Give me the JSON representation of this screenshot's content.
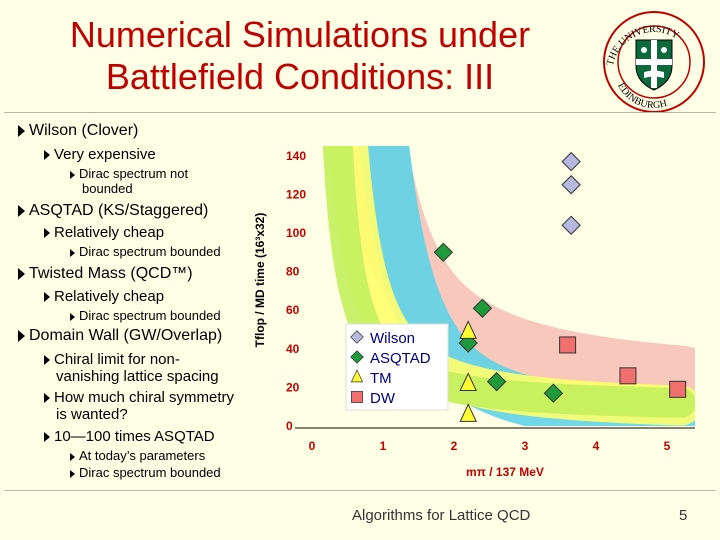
{
  "slide": {
    "title_line1": "Numerical Simulations under",
    "title_line2": "Battlefield Conditions: III",
    "footer_text": "Algorithms for Lattice QCD",
    "page_number": "5"
  },
  "logo": {
    "top_text": "THE UNIVERSITY",
    "side_text": "EDINBURGH",
    "colors": {
      "shield": "#0b6a3c",
      "cross": "#ffffff",
      "ring": "#c00000"
    }
  },
  "bullets": [
    {
      "level": 1,
      "text": "Wilson (Clover)"
    },
    {
      "level": 2,
      "text": "Very expensive"
    },
    {
      "level": 3,
      "text": "Dirac spectrum not"
    },
    {
      "level": 3,
      "text": "bounded",
      "continuation": true
    },
    {
      "level": 1,
      "text": "ASQTAD (KS/Staggered)"
    },
    {
      "level": 2,
      "text": "Relatively cheap"
    },
    {
      "level": 3,
      "text": "Dirac spectrum bounded"
    },
    {
      "level": 1,
      "text": "Twisted Mass (QCD™)"
    },
    {
      "level": 2,
      "text": "Relatively cheap"
    },
    {
      "level": 3,
      "text": "Dirac spectrum bounded"
    },
    {
      "level": 1,
      "text": "Domain Wall (GW/Overlap)"
    },
    {
      "level": 2,
      "text": "Chiral limit for non-"
    },
    {
      "level": 2,
      "text": "vanishing lattice spacing",
      "continuation": true
    },
    {
      "level": 2,
      "text": "How much chiral symmetry"
    },
    {
      "level": 2,
      "text": "is wanted?",
      "continuation": true
    },
    {
      "level": 2,
      "text": "10—100 times ASQTAD"
    },
    {
      "level": 3,
      "text": "At today’s parameters"
    },
    {
      "level": 3,
      "text": "Dirac spectrum bounded"
    }
  ],
  "chart_data": {
    "type": "scatter",
    "xlabel": "mπ / 137 MeV",
    "ylabel": "Tflop / MD time (16³x32)",
    "xlim": [
      0,
      5
    ],
    "ylim": [
      0,
      140
    ],
    "x_ticks": [
      "0",
      "1",
      "2",
      "3",
      "4",
      "5"
    ],
    "y_ticks": [
      "0",
      "20",
      "40",
      "60",
      "80",
      "100",
      "120",
      "140"
    ],
    "series": [
      {
        "name": "Wilson",
        "marker": "diamond",
        "color": "#b7b7e0",
        "points": [
          [
            3.65,
            137
          ],
          [
            3.65,
            125
          ],
          [
            3.65,
            104
          ]
        ]
      },
      {
        "name": "ASQTAD",
        "marker": "diamond",
        "color": "#1f9a3a",
        "points": [
          [
            1.85,
            90
          ],
          [
            2.4,
            61
          ],
          [
            2.2,
            43
          ],
          [
            2.6,
            23
          ],
          [
            3.4,
            17
          ]
        ]
      },
      {
        "name": "TM",
        "marker": "triangle",
        "color": "#ffff33",
        "points": [
          [
            2.2,
            49
          ],
          [
            2.2,
            22
          ],
          [
            2.2,
            6
          ]
        ]
      },
      {
        "name": "DW",
        "marker": "square",
        "color": "#f07070",
        "points": [
          [
            3.6,
            42
          ],
          [
            4.45,
            26
          ],
          [
            5.15,
            19
          ]
        ]
      }
    ],
    "bands": [
      {
        "color": "#f6c2b6"
      },
      {
        "color": "#5fd3e8"
      },
      {
        "color": "#ffff6b"
      },
      {
        "color": "#c4f05c"
      }
    ],
    "legend_position": "center-left",
    "colors": {
      "tick": "#c00000",
      "axis": "#000000",
      "legend_text": "#000080"
    }
  }
}
